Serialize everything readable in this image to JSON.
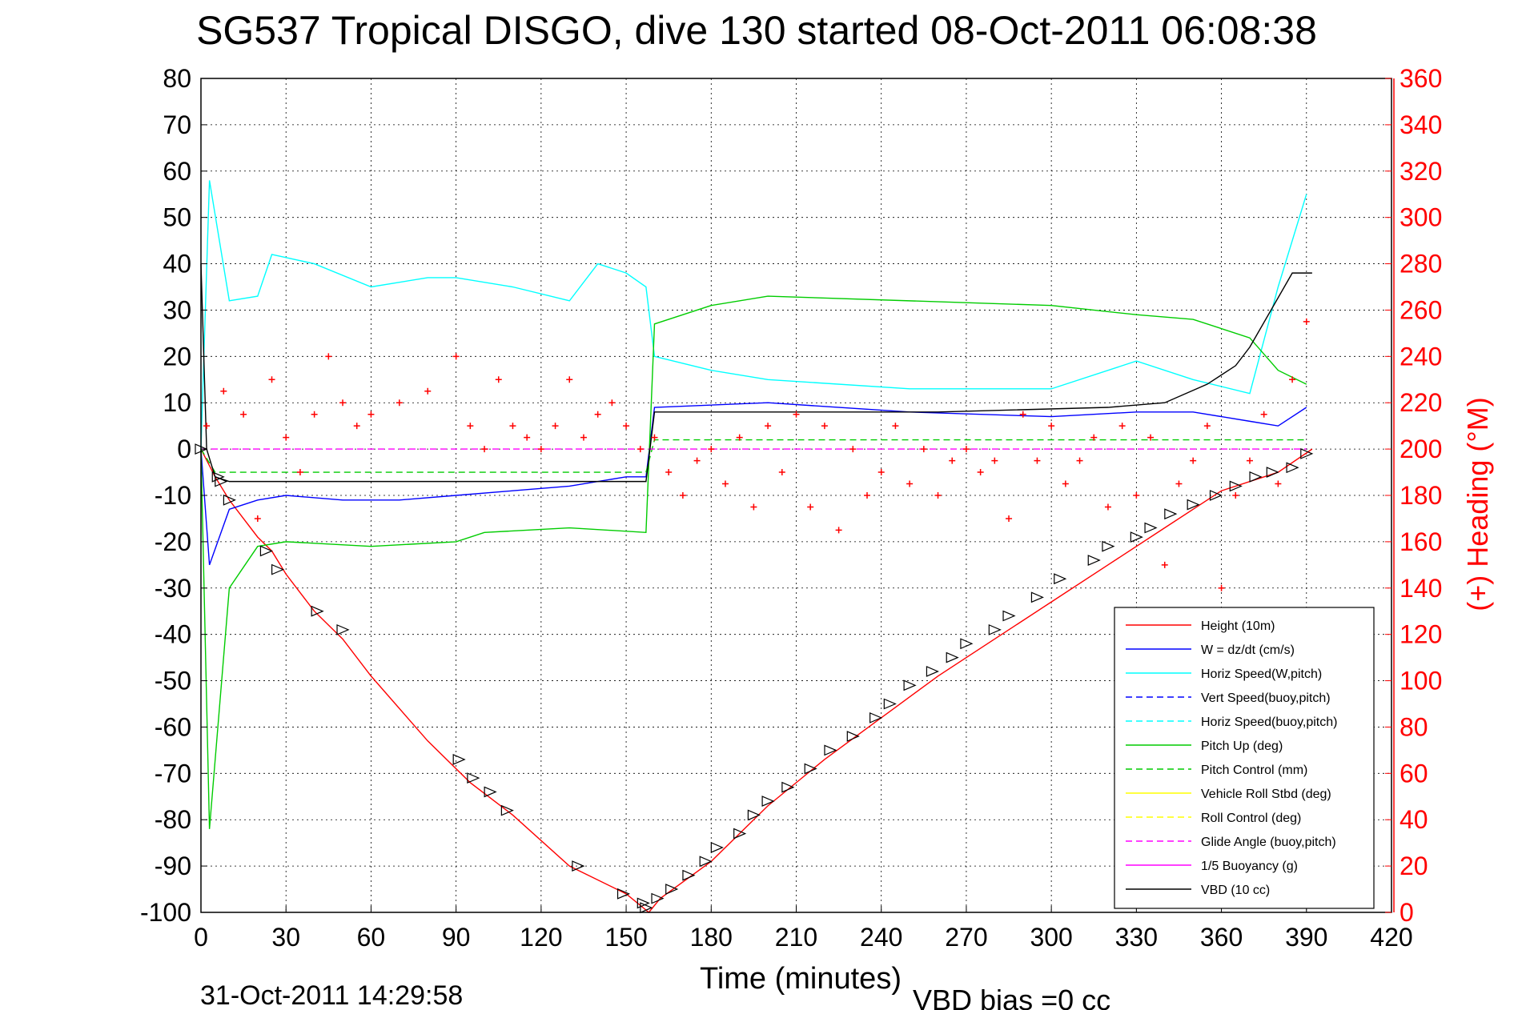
{
  "chart_data": {
    "type": "line",
    "title": "SG537 Tropical DISGO, dive 130 started 08-Oct-2011 06:08:38",
    "xlabel": "Time (minutes)",
    "ylabel_right": "(+) Heading (°M)",
    "footer_date": "31-Oct-2011 14:29:58",
    "footer_bias": "VBD bias =0 cc",
    "xlim": [
      0,
      420
    ],
    "ylim_left": [
      -100,
      80
    ],
    "ylim_right": [
      0,
      360
    ],
    "x_ticks": [
      0,
      30,
      60,
      90,
      120,
      150,
      180,
      210,
      240,
      270,
      300,
      330,
      360,
      390,
      420
    ],
    "y_ticks_left": [
      80,
      70,
      60,
      50,
      40,
      30,
      20,
      10,
      0,
      -10,
      -20,
      -30,
      -40,
      -50,
      -60,
      -70,
      -80,
      -90,
      -100
    ],
    "y_ticks_right": [
      360,
      340,
      320,
      300,
      280,
      260,
      240,
      220,
      200,
      180,
      160,
      140,
      120,
      100,
      80,
      60,
      40,
      20,
      0
    ],
    "grid": true,
    "legend_position": "bottom-right",
    "colors": {
      "right_axis": "#ff0000"
    },
    "series": [
      {
        "name": "Height (10m)",
        "color": "#ff0000",
        "style": "solid",
        "x": [
          0,
          5,
          10,
          20,
          25,
          30,
          40,
          50,
          60,
          80,
          95,
          110,
          130,
          150,
          158,
          162,
          180,
          200,
          220,
          240,
          260,
          280,
          300,
          320,
          340,
          360,
          380,
          392
        ],
        "y": [
          0,
          -6,
          -11,
          -19,
          -22,
          -27,
          -35,
          -41,
          -49,
          -63,
          -72,
          -79,
          -90,
          -96,
          -100,
          -97,
          -89,
          -77,
          -67,
          -58,
          -49,
          -41,
          -33,
          -25,
          -17,
          -9,
          -5,
          0
        ]
      },
      {
        "name": "W = dz/dt (cm/s)",
        "color": "#0000ff",
        "style": "solid",
        "x": [
          0,
          3,
          10,
          20,
          30,
          50,
          70,
          90,
          110,
          130,
          150,
          157,
          160,
          200,
          250,
          300,
          330,
          350,
          370,
          380,
          390
        ],
        "y": [
          0,
          -25,
          -13,
          -11,
          -10,
          -11,
          -11,
          -10,
          -9,
          -8,
          -6,
          -6,
          9,
          10,
          8,
          7,
          8,
          8,
          6,
          5,
          9
        ]
      },
      {
        "name": "Horiz Speed(W,pitch)",
        "color": "#00ffff",
        "style": "solid",
        "x": [
          0,
          3,
          10,
          20,
          25,
          40,
          60,
          80,
          90,
          110,
          130,
          140,
          150,
          157,
          160,
          180,
          200,
          250,
          300,
          330,
          350,
          370,
          380,
          390
        ],
        "y": [
          0,
          58,
          32,
          33,
          42,
          40,
          35,
          37,
          37,
          35,
          32,
          40,
          38,
          35,
          20,
          17,
          15,
          13,
          13,
          19,
          15,
          12,
          35,
          55
        ]
      },
      {
        "name": "Vert Speed(buoy,pitch)",
        "color": "#0000ff",
        "style": "dashed",
        "x": [],
        "y": []
      },
      {
        "name": "Horiz Speed(buoy,pitch)",
        "color": "#00ffff",
        "style": "dashed",
        "x": [],
        "y": []
      },
      {
        "name": "Pitch Up (deg)",
        "color": "#00cc00",
        "style": "solid",
        "x": [
          0,
          3,
          10,
          20,
          30,
          60,
          90,
          100,
          130,
          157,
          160,
          180,
          200,
          250,
          300,
          330,
          350,
          370,
          380,
          390
        ],
        "y": [
          0,
          -82,
          -30,
          -21,
          -20,
          -21,
          -20,
          -18,
          -17,
          -18,
          27,
          31,
          33,
          32,
          31,
          29,
          28,
          24,
          17,
          14
        ]
      },
      {
        "name": "Pitch Control (mm)",
        "color": "#00cc00",
        "style": "dashed",
        "x": [
          0,
          5,
          20,
          60,
          90,
          130,
          157,
          160,
          200,
          250,
          300,
          330,
          360,
          390
        ],
        "y": [
          0,
          -5,
          -5,
          -5,
          -5,
          -5,
          -5,
          2,
          2,
          2,
          2,
          2,
          2,
          2
        ]
      },
      {
        "name": "Vehicle Roll Stbd (deg)",
        "color": "#ffff00",
        "style": "solid",
        "x": [],
        "y": []
      },
      {
        "name": "Roll Control (deg)",
        "color": "#ffff00",
        "style": "dashed",
        "x": [],
        "y": []
      },
      {
        "name": "Glide Angle (buoy,pitch)",
        "color": "#ff00ff",
        "style": "dashed",
        "x": [
          0,
          390
        ],
        "y": [
          0,
          0
        ]
      },
      {
        "name": "1/5 Buoyancy (g)",
        "color": "#ff00ff",
        "style": "solid",
        "x": [],
        "y": []
      },
      {
        "name": "VBD (10 cc)",
        "color": "#000000",
        "style": "solid",
        "x": [
          0,
          2,
          5,
          10,
          150,
          157,
          160,
          260,
          320,
          340,
          355,
          365,
          370,
          385,
          392
        ],
        "y": [
          40,
          0,
          -6,
          -7,
          -7,
          -7,
          8,
          8,
          9,
          10,
          14,
          18,
          22,
          38,
          38
        ]
      },
      {
        "name": "(+) Heading (°M)",
        "color": "#ff0000",
        "style": "plus",
        "axis": "right",
        "x": [
          2,
          8,
          15,
          20,
          25,
          30,
          35,
          40,
          45,
          50,
          55,
          60,
          70,
          80,
          90,
          95,
          100,
          105,
          110,
          115,
          120,
          125,
          130,
          135,
          140,
          145,
          150,
          155,
          160,
          165,
          170,
          175,
          180,
          185,
          190,
          195,
          200,
          205,
          210,
          215,
          220,
          225,
          230,
          235,
          240,
          245,
          250,
          255,
          260,
          265,
          270,
          275,
          280,
          285,
          290,
          295,
          300,
          305,
          310,
          315,
          320,
          325,
          330,
          335,
          340,
          345,
          350,
          355,
          360,
          365,
          370,
          375,
          380,
          385,
          390
        ],
        "y": [
          210,
          225,
          215,
          170,
          230,
          205,
          190,
          215,
          240,
          220,
          210,
          215,
          220,
          225,
          240,
          210,
          200,
          230,
          210,
          205,
          200,
          210,
          230,
          205,
          215,
          220,
          210,
          200,
          205,
          190,
          180,
          195,
          200,
          185,
          205,
          175,
          210,
          190,
          215,
          175,
          210,
          165,
          200,
          180,
          190,
          210,
          185,
          200,
          180,
          195,
          200,
          190,
          195,
          170,
          215,
          195,
          210,
          185,
          195,
          205,
          175,
          210,
          180,
          205,
          150,
          185,
          195,
          210,
          140,
          180,
          195,
          215,
          185,
          230,
          255
        ]
      },
      {
        "name": "Markers",
        "color": "#000000",
        "style": "triangle",
        "axis": "left",
        "x": [
          0,
          6,
          7,
          10,
          23,
          27,
          41,
          50,
          91,
          96,
          102,
          108,
          133,
          149,
          156,
          157,
          161,
          166,
          172,
          178,
          182,
          190,
          195,
          200,
          207,
          215,
          222,
          230,
          238,
          243,
          250,
          258,
          265,
          270,
          280,
          285,
          295,
          303,
          315,
          320,
          330,
          335,
          342,
          350,
          358,
          365,
          372,
          378,
          385,
          390
        ],
        "y": [
          0,
          -6,
          -7,
          -11,
          -22,
          -26,
          -35,
          -39,
          -67,
          -71,
          -74,
          -78,
          -90,
          -96,
          -98,
          -99,
          -97,
          -95,
          -92,
          -89,
          -86,
          -83,
          -79,
          -76,
          -73,
          -69,
          -65,
          -62,
          -58,
          -55,
          -51,
          -48,
          -45,
          -42,
          -39,
          -36,
          -32,
          -28,
          -24,
          -21,
          -19,
          -17,
          -14,
          -12,
          -10,
          -8,
          -6,
          -5,
          -4,
          -1
        ]
      }
    ]
  }
}
